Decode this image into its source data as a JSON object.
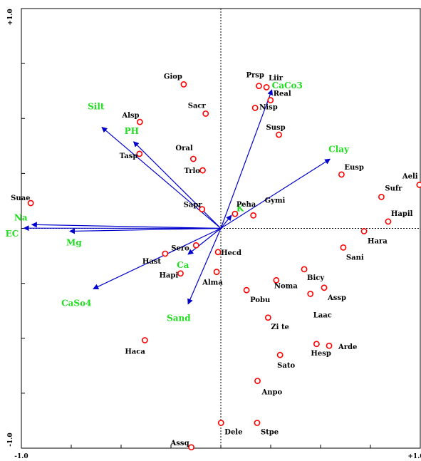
{
  "chart_data": {
    "type": "scatter",
    "subtype": "ordination-biplot",
    "xlim": [
      -1.0,
      1.0
    ],
    "ylim": [
      -1.0,
      1.0
    ],
    "x_tick_labels": [
      "-1.0",
      "+1.0"
    ],
    "y_tick_labels": [
      "+1.0",
      "-1.0"
    ],
    "axes_through_origin": "dotted",
    "colors": {
      "species_point": "#ff0000",
      "env_arrow": "#0000cc",
      "env_label": "#22dd22",
      "text": "#000000"
    },
    "species": [
      {
        "name": "Aeli",
        "x": 0.996,
        "y": 0.198
      },
      {
        "name": "Giop",
        "x": -0.186,
        "y": 0.655
      },
      {
        "name": "Prsp",
        "x": 0.191,
        "y": 0.648
      },
      {
        "name": "Liir",
        "x": 0.229,
        "y": 0.642
      },
      {
        "name": "Real",
        "x": 0.249,
        "y": 0.583
      },
      {
        "name": "Nisp",
        "x": 0.172,
        "y": 0.548
      },
      {
        "name": "Sacr",
        "x": -0.076,
        "y": 0.522
      },
      {
        "name": "Alsp",
        "x": -0.406,
        "y": 0.484
      },
      {
        "name": "Susp",
        "x": 0.291,
        "y": 0.426
      },
      {
        "name": "Oral",
        "x": -0.138,
        "y": 0.316
      },
      {
        "name": "Tasp",
        "x": -0.408,
        "y": 0.339
      },
      {
        "name": "Trlo",
        "x": -0.091,
        "y": 0.264
      },
      {
        "name": "Eusp",
        "x": 0.605,
        "y": 0.245
      },
      {
        "name": "Sufr",
        "x": 0.805,
        "y": 0.143
      },
      {
        "name": "Suae",
        "x": -0.953,
        "y": 0.115
      },
      {
        "name": "Sapr",
        "x": -0.094,
        "y": 0.087
      },
      {
        "name": "Gymi",
        "x": 0.163,
        "y": 0.059
      },
      {
        "name": "Peha",
        "x": 0.071,
        "y": 0.066
      },
      {
        "name": "Hapil",
        "x": 0.839,
        "y": 0.031
      },
      {
        "name": "Hara",
        "x": 0.718,
        "y": -0.013
      },
      {
        "name": "Sani",
        "x": 0.614,
        "y": -0.087
      },
      {
        "name": "Sero",
        "x": -0.124,
        "y": -0.077
      },
      {
        "name": "Hecd",
        "x": -0.014,
        "y": -0.108
      },
      {
        "name": "Hast",
        "x": -0.279,
        "y": -0.115
      },
      {
        "name": "Bicy",
        "x": 0.418,
        "y": -0.186
      },
      {
        "name": "Hapi",
        "x": -0.202,
        "y": -0.205
      },
      {
        "name": "Alma",
        "x": -0.021,
        "y": -0.198
      },
      {
        "name": "Noma",
        "x": 0.278,
        "y": -0.236
      },
      {
        "name": "Assp",
        "x": 0.518,
        "y": -0.27
      },
      {
        "name": "Pobu",
        "x": 0.129,
        "y": -0.281
      },
      {
        "name": "Laac",
        "x": 0.449,
        "y": -0.298
      },
      {
        "name": "Zi te",
        "x": 0.237,
        "y": -0.406
      },
      {
        "name": "Haca",
        "x": -0.381,
        "y": -0.509
      },
      {
        "name": "Arde",
        "x": 0.543,
        "y": -0.534
      },
      {
        "name": "Hesp",
        "x": 0.48,
        "y": -0.526
      },
      {
        "name": "Sato",
        "x": 0.297,
        "y": -0.576
      },
      {
        "name": "Anpo",
        "x": 0.184,
        "y": -0.694
      },
      {
        "name": "Dele",
        "x": 0.001,
        "y": -0.885
      },
      {
        "name": "Stpe",
        "x": 0.182,
        "y": -0.885
      },
      {
        "name": "Assq",
        "x": -0.148,
        "y": -0.996
      }
    ],
    "env_vectors": [
      {
        "name": "Clay",
        "x": 0.547,
        "y": 0.315
      },
      {
        "name": "CaCo3",
        "x": 0.256,
        "y": 0.63
      },
      {
        "name": "Silt",
        "x": -0.596,
        "y": 0.46
      },
      {
        "name": "PH",
        "x": -0.437,
        "y": 0.394
      },
      {
        "name": "K",
        "x": 0.053,
        "y": 0.059
      },
      {
        "name": "Na",
        "x": -0.947,
        "y": 0.017
      },
      {
        "name": "EC",
        "x": -0.987,
        "y": 0.001
      },
      {
        "name": "Mg",
        "x": -0.757,
        "y": -0.013
      },
      {
        "name": "Ca",
        "x": -0.164,
        "y": -0.118
      },
      {
        "name": "CaSo4",
        "x": -0.639,
        "y": -0.275
      },
      {
        "name": "Sand",
        "x": -0.164,
        "y": -0.344
      }
    ]
  }
}
